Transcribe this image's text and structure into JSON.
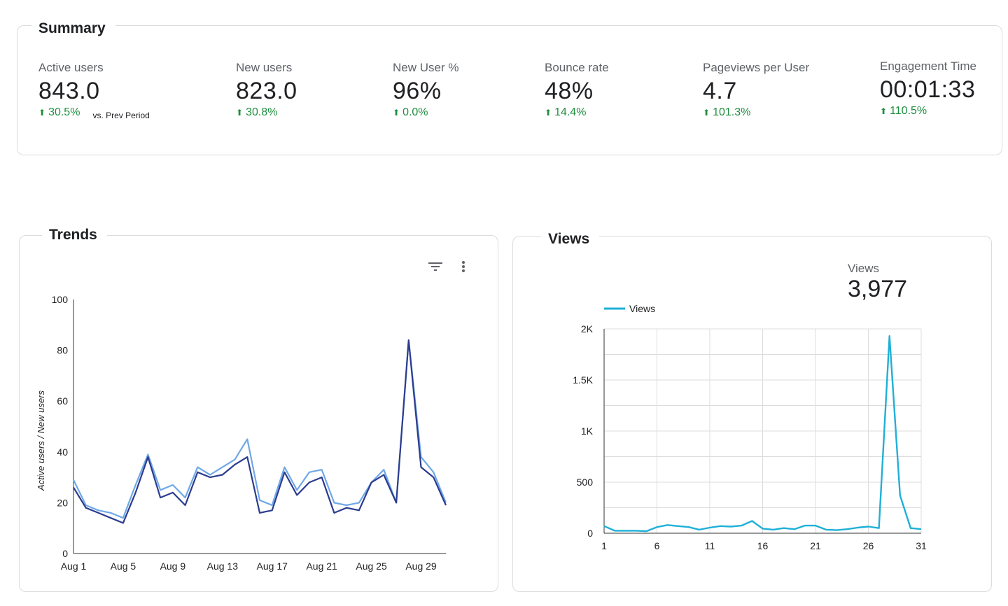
{
  "summary": {
    "title": "Summary",
    "vs_prev": "vs. Prev Period",
    "metrics": [
      {
        "label": "Active users",
        "value": "843.0",
        "delta": "30.5%"
      },
      {
        "label": "New users",
        "value": "823.0",
        "delta": "30.8%"
      },
      {
        "label": "New User %",
        "value": "96%",
        "delta": "0.0%"
      },
      {
        "label": "Bounce rate",
        "value": "48%",
        "delta": "14.4%"
      },
      {
        "label": "Pageviews per User",
        "value": "4.7",
        "delta": "101.3%"
      },
      {
        "label": "Engagement Time",
        "value": "00:01:33",
        "delta": "110.5%"
      }
    ],
    "delta_color": "#1e8e3e"
  },
  "trends": {
    "title": "Trends",
    "filter_icon": "filter-icon",
    "menu_icon": "more-vert-icon"
  },
  "views": {
    "title": "Views",
    "total_label": "Views",
    "total_value": "3,977"
  },
  "chart_data": [
    {
      "type": "line",
      "title": "Trends",
      "xlabel": "",
      "ylabel": "Active users / New users",
      "ylim": [
        0,
        100
      ],
      "yticks": [
        0,
        20,
        40,
        60,
        80,
        100
      ],
      "x": [
        "Aug 1",
        "Aug 2",
        "Aug 3",
        "Aug 4",
        "Aug 5",
        "Aug 6",
        "Aug 7",
        "Aug 8",
        "Aug 9",
        "Aug 10",
        "Aug 11",
        "Aug 12",
        "Aug 13",
        "Aug 14",
        "Aug 15",
        "Aug 16",
        "Aug 17",
        "Aug 18",
        "Aug 19",
        "Aug 20",
        "Aug 21",
        "Aug 22",
        "Aug 23",
        "Aug 24",
        "Aug 25",
        "Aug 26",
        "Aug 27",
        "Aug 28",
        "Aug 29",
        "Aug 30",
        "Aug 31"
      ],
      "xtick_labels": [
        "Aug 1",
        "Aug 5",
        "Aug 9",
        "Aug 13",
        "Aug 17",
        "Aug 21",
        "Aug 25",
        "Aug 29"
      ],
      "series": [
        {
          "name": "Active users",
          "color": "#6fa8e6",
          "values": [
            29,
            19,
            17,
            16,
            14,
            27,
            39,
            25,
            27,
            22,
            34,
            31,
            34,
            37,
            45,
            21,
            19,
            34,
            25,
            32,
            33,
            20,
            19,
            20,
            28,
            33,
            20,
            84,
            38,
            32,
            20
          ]
        },
        {
          "name": "New users",
          "color": "#2b3c8f",
          "values": [
            26,
            18,
            16,
            14,
            12,
            24,
            38,
            22,
            24,
            19,
            32,
            30,
            31,
            35,
            38,
            16,
            17,
            32,
            23,
            28,
            30,
            16,
            18,
            17,
            28,
            31,
            20,
            84,
            34,
            30,
            19
          ]
        }
      ]
    },
    {
      "type": "line",
      "title": "Views",
      "legend": [
        "Views"
      ],
      "legend_position": "top-left",
      "ylim": [
        0,
        2000
      ],
      "yticks": [
        0,
        500,
        1000,
        1500,
        2000
      ],
      "ytick_labels": [
        "0",
        "500",
        "1K",
        "1.5K",
        "2K"
      ],
      "x": [
        1,
        2,
        3,
        4,
        5,
        6,
        7,
        8,
        9,
        10,
        11,
        12,
        13,
        14,
        15,
        16,
        17,
        18,
        19,
        20,
        21,
        22,
        23,
        24,
        25,
        26,
        27,
        28,
        29,
        30,
        31
      ],
      "xtick_labels": [
        "1",
        "6",
        "11",
        "16",
        "21",
        "26",
        "31"
      ],
      "grid": true,
      "series": [
        {
          "name": "Views",
          "color": "#1fb0d8",
          "values": [
            70,
            25,
            25,
            25,
            20,
            60,
            80,
            70,
            60,
            35,
            55,
            70,
            65,
            75,
            120,
            45,
            35,
            50,
            40,
            75,
            75,
            35,
            30,
            40,
            55,
            65,
            50,
            1930,
            370,
            50,
            40
          ]
        }
      ]
    }
  ]
}
